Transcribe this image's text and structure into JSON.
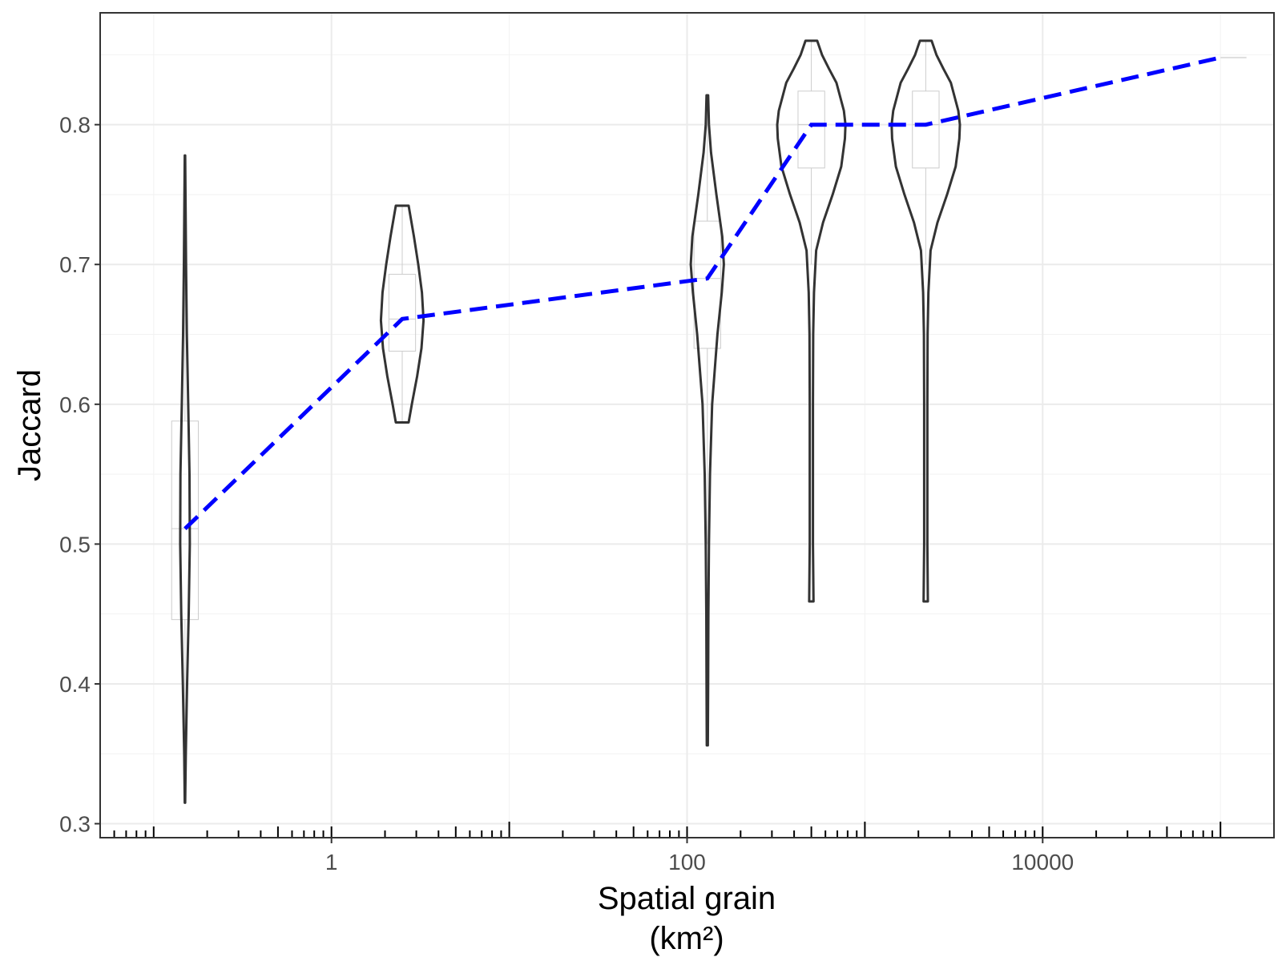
{
  "chart_data": {
    "type": "violin",
    "title": "",
    "xlabel": "Spatial grain",
    "xlabel_unit": "(km²)",
    "ylabel": "Jaccard",
    "x_scale": "log10",
    "xlim": [
      0.05,
      200000
    ],
    "ylim": [
      0.29,
      0.88
    ],
    "x_ticks": [
      1,
      100,
      10000
    ],
    "x_tick_labels": [
      "1",
      "100",
      "10000"
    ],
    "y_ticks": [
      0.3,
      0.4,
      0.5,
      0.6,
      0.7,
      0.8
    ],
    "y_tick_labels": [
      "0.3",
      "0.4",
      "0.5",
      "0.6",
      "0.7",
      "0.8"
    ],
    "grid": true,
    "legend": "none",
    "violins": [
      {
        "x": 0.15,
        "ymin": 0.315,
        "ymax": 0.778,
        "box": {
          "q1": 0.446,
          "median": 0.511,
          "q3": 0.588,
          "whisker_low": 0.315,
          "whisker_high": 0.778
        },
        "profile": [
          [
            0.315,
            0.004
          ],
          [
            0.35,
            0.015
          ],
          [
            0.4,
            0.04
          ],
          [
            0.45,
            0.07
          ],
          [
            0.5,
            0.09
          ],
          [
            0.55,
            0.085
          ],
          [
            0.6,
            0.06
          ],
          [
            0.65,
            0.035
          ],
          [
            0.7,
            0.02
          ],
          [
            0.75,
            0.01
          ],
          [
            0.778,
            0.004
          ]
        ]
      },
      {
        "x": 2.5,
        "ymin": 0.587,
        "ymax": 0.742,
        "box": {
          "q1": 0.638,
          "median": 0.661,
          "q3": 0.693,
          "whisker_low": 0.587,
          "whisker_high": 0.742
        },
        "profile": [
          [
            0.587,
            0.12
          ],
          [
            0.6,
            0.18
          ],
          [
            0.62,
            0.28
          ],
          [
            0.64,
            0.36
          ],
          [
            0.66,
            0.4
          ],
          [
            0.68,
            0.37
          ],
          [
            0.7,
            0.3
          ],
          [
            0.72,
            0.22
          ],
          [
            0.742,
            0.12
          ]
        ]
      },
      {
        "x": 130,
        "ymin": 0.356,
        "ymax": 0.821,
        "box": {
          "q1": 0.64,
          "median": 0.69,
          "q3": 0.731,
          "whisker_low": 0.5,
          "whisker_high": 0.821
        },
        "profile": [
          [
            0.356,
            0.01
          ],
          [
            0.4,
            0.015
          ],
          [
            0.45,
            0.02
          ],
          [
            0.5,
            0.03
          ],
          [
            0.55,
            0.05
          ],
          [
            0.6,
            0.09
          ],
          [
            0.65,
            0.19
          ],
          [
            0.68,
            0.27
          ],
          [
            0.7,
            0.31
          ],
          [
            0.72,
            0.28
          ],
          [
            0.75,
            0.17
          ],
          [
            0.78,
            0.07
          ],
          [
            0.8,
            0.03
          ],
          [
            0.821,
            0.015
          ]
        ]
      },
      {
        "x": 500,
        "ymin": 0.459,
        "ymax": 0.86,
        "box": {
          "q1": 0.769,
          "median": 0.8,
          "q3": 0.824,
          "whisker_low": 0.7,
          "whisker_high": 0.86
        },
        "profile": [
          [
            0.459,
            0.04
          ],
          [
            0.5,
            0.03
          ],
          [
            0.55,
            0.03
          ],
          [
            0.6,
            0.03
          ],
          [
            0.65,
            0.035
          ],
          [
            0.68,
            0.05
          ],
          [
            0.71,
            0.09
          ],
          [
            0.73,
            0.22
          ],
          [
            0.75,
            0.4
          ],
          [
            0.77,
            0.56
          ],
          [
            0.79,
            0.63
          ],
          [
            0.8,
            0.64
          ],
          [
            0.81,
            0.61
          ],
          [
            0.83,
            0.47
          ],
          [
            0.84,
            0.33
          ],
          [
            0.85,
            0.2
          ],
          [
            0.86,
            0.11
          ]
        ]
      },
      {
        "x": 2200,
        "ymin": 0.459,
        "ymax": 0.86,
        "box": {
          "q1": 0.769,
          "median": 0.8,
          "q3": 0.824,
          "whisker_low": 0.7,
          "whisker_high": 0.86
        },
        "profile": [
          [
            0.459,
            0.04
          ],
          [
            0.5,
            0.03
          ],
          [
            0.55,
            0.03
          ],
          [
            0.6,
            0.03
          ],
          [
            0.65,
            0.035
          ],
          [
            0.68,
            0.05
          ],
          [
            0.71,
            0.09
          ],
          [
            0.73,
            0.22
          ],
          [
            0.75,
            0.4
          ],
          [
            0.77,
            0.56
          ],
          [
            0.79,
            0.63
          ],
          [
            0.8,
            0.64
          ],
          [
            0.81,
            0.61
          ],
          [
            0.83,
            0.47
          ],
          [
            0.84,
            0.33
          ],
          [
            0.85,
            0.2
          ],
          [
            0.86,
            0.11
          ]
        ]
      }
    ],
    "series": [
      {
        "style": "dashed",
        "color": "#0000ff",
        "x": [
          0.15,
          2.5,
          130,
          500,
          2200,
          100000
        ],
        "y": [
          0.511,
          0.661,
          0.69,
          0.8,
          0.8,
          0.848
        ]
      }
    ],
    "extra_marks": [
      {
        "type": "hline",
        "x_from": 100000,
        "x_to": 140000,
        "y": 0.848,
        "color": "#dddddd"
      }
    ]
  }
}
